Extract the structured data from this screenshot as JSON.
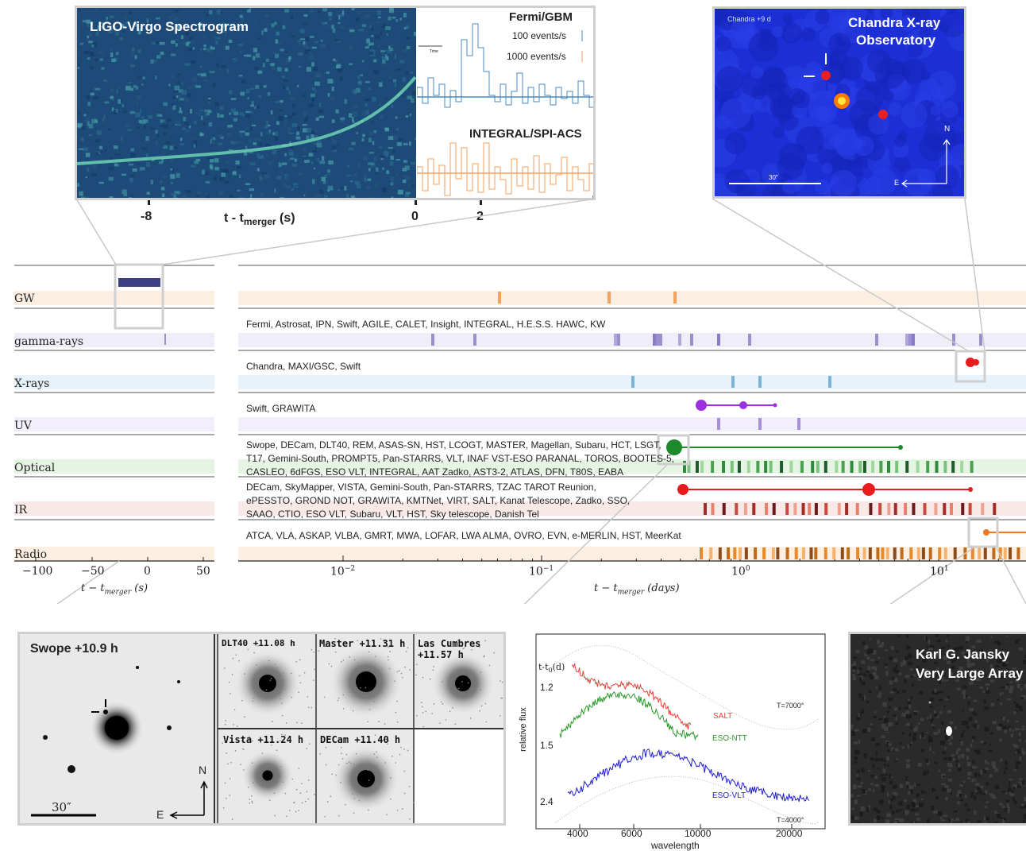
{
  "gw_panel": {
    "title": "LIGO-Virgo Spectrogram",
    "fermi_label": "Fermi/GBM",
    "rate_100": "100 events/s",
    "rate_1000": "1000 events/s",
    "integral_label": "INTEGRAL/SPI-ACS",
    "time_arrow_label": "Time",
    "tick_m8": "-8",
    "tick_0": "0",
    "tick_2": "2",
    "axis_label_main": "t - t",
    "axis_label_sub": "merger",
    "axis_label_unit": " (s)"
  },
  "chandra_panel": {
    "epoch": "Chandra +9 d",
    "title_line1": "Chandra X-ray",
    "title_line2": "Observatory",
    "north": "N",
    "east": "E",
    "scale": "30\""
  },
  "bands": [
    {
      "name": "GW",
      "facilities": []
    },
    {
      "name": "gamma-rays",
      "facilities": [
        "Fermi, Astrosat, IPN, Swift, AGILE, CALET, Insight, INTEGRAL, H.E.S.S. HAWC, KW"
      ]
    },
    {
      "name": "X-rays",
      "facilities": [
        "Chandra, MAXI/GSC, Swift"
      ]
    },
    {
      "name": "UV",
      "facilities": [
        "Swift, GRAWITA"
      ]
    },
    {
      "name": "Optical",
      "facilities": [
        "Swope, DECam, DLT40, REM, ASAS-SN, HST, LCOGT, MASTER, Magellan, Subaru, HCT, LSGT,",
        "T17, Gemini-South, PROMPT5, Pan-STARRS, VLT, INAF VST-ESO PARANAL, TOROS, BOOTES-5,",
        "CASLEO, 6dFGS, ESO VLT, INTEGRAL, AAT Zadko, AST3-2, ATLAS, DFN, T80S, EABA"
      ]
    },
    {
      "name": "IR",
      "facilities": [
        "DECam, SkyMapper, VISTA, Gemini-South, Pan-STARRS, TZAC TAROT Reunion,",
        "ePESSTO, GROND NOT, GRAWITA, KMTNet, VIRT, SALT, Kanat Telescope, Zadko, SSO,",
        "SAAO, CTIO, ESO VLT, Subaru, VLT, HST, Sky telescope, Danish Tel"
      ]
    },
    {
      "name": "Radio",
      "facilities": [
        "ATCA, VLA, ASKAP, VLBA, GMRT, MWA, LOFAR, LWA ALMA, OVRO, EVN, e-MERLIN, HST, MeerKat"
      ]
    }
  ],
  "left_axis": {
    "ticks": [
      "−100",
      "−50",
      "0",
      "50"
    ],
    "label_main": "t − t",
    "label_sub": "merger",
    "label_unit": " (s)"
  },
  "right_axis": {
    "ticks": [
      {
        "base": "10",
        "exp": "−2"
      },
      {
        "base": "10",
        "exp": "−1"
      },
      {
        "base": "10",
        "exp": "0"
      },
      {
        "base": "10",
        "exp": "1"
      }
    ],
    "label_main": "t − t",
    "label_sub": "merger",
    "label_unit": " (days)"
  },
  "optical_panels": {
    "swope": "Swope +10.9 h",
    "swope_scale": "30″",
    "swope_north": "N",
    "swope_east": "E",
    "dlt40": "DLT40 +11.08 h",
    "master": "Master +11.31 h",
    "lascumbres_1": "Las Cumbres",
    "lascumbres_2": "+11.57 h",
    "vista": "Vista +11.24 h",
    "decam": "DECam +11.40 h"
  },
  "spectra_panel": {
    "ylabel": "relative flux",
    "tlabel": "t-t",
    "tlabel_sub": "0",
    "tlabel_unit": "(d)",
    "epochs": [
      "1.2",
      "1.5",
      "2.4"
    ],
    "xticks": [
      "4000",
      "6000",
      "10000",
      "20000"
    ],
    "xlabel": "wavelength",
    "temp_hot": "T=7000°",
    "temp_cool": "T=4000°",
    "series": [
      {
        "name": "SALT",
        "color": "#e8423a"
      },
      {
        "name": "ESO-NTT",
        "color": "#2a9a2a"
      },
      {
        "name": "ESO-VLT",
        "color": "#1c1ccc"
      }
    ]
  },
  "vla_panel": {
    "title_line1": "Karl G. Jansky",
    "title_line2": "Very Large Array"
  },
  "colors": {
    "gw": "#f5a25c",
    "gamma": "#9b8fcc",
    "xray": "#7ab3d6",
    "uv": "#a88fd9",
    "optical": "#2e8b3d",
    "ir": "#a52a2a",
    "radio": "#e88a2a",
    "gw_strip": "#fdeee2",
    "gamma_strip": "#efeef8",
    "xray_strip": "#e8f2fa",
    "uv_strip": "#f3eefb",
    "optical_strip": "#e6f4e4",
    "ir_strip": "#f8e9e6",
    "radio_strip": "#fdf0e2"
  }
}
